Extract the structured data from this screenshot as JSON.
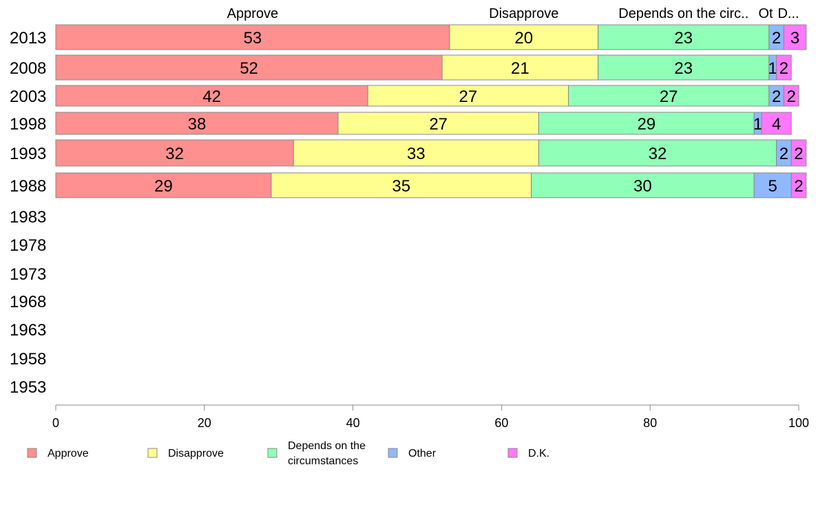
{
  "chart_data": {
    "type": "bar",
    "orientation": "horizontal",
    "stacked": true,
    "categories": [
      "2013",
      "2008",
      "2003",
      "1998",
      "1993",
      "1988",
      "1983",
      "1978",
      "1973",
      "1968",
      "1963",
      "1958",
      "1953"
    ],
    "series": [
      {
        "name": "Approve",
        "color": "#ff9090",
        "values": [
          53,
          52,
          42,
          38,
          32,
          29,
          null,
          null,
          null,
          null,
          null,
          null,
          null
        ]
      },
      {
        "name": "Disapprove",
        "color": "#ffff90",
        "values": [
          20,
          21,
          27,
          27,
          33,
          35,
          null,
          null,
          null,
          null,
          null,
          null,
          null
        ]
      },
      {
        "name": "Depends on the circumstances",
        "color": "#90ffb8",
        "values": [
          23,
          23,
          27,
          29,
          32,
          30,
          null,
          null,
          null,
          null,
          null,
          null,
          null
        ]
      },
      {
        "name": "Other",
        "color": "#90b8ff",
        "values": [
          2,
          1,
          2,
          1,
          2,
          5,
          null,
          null,
          null,
          null,
          null,
          null,
          null
        ]
      },
      {
        "name": "D.K.",
        "color": "#ff78ff",
        "values": [
          3,
          2,
          2,
          4,
          2,
          2,
          null,
          null,
          null,
          null,
          null,
          null,
          null
        ]
      }
    ],
    "column_labels": [
      "Approve",
      "Disapprove",
      "Depends on the circ..",
      "Ot",
      "D..."
    ],
    "legend_labels": [
      "Approve",
      "Disapprove",
      "Depends on the circumstances",
      "Other",
      "D.K."
    ],
    "legend_position": "bottom",
    "xlim": [
      0,
      100
    ],
    "xticks": [
      0,
      20,
      40,
      60,
      80,
      100
    ],
    "grid": false,
    "title": "",
    "xlabel": "",
    "ylabel": ""
  }
}
